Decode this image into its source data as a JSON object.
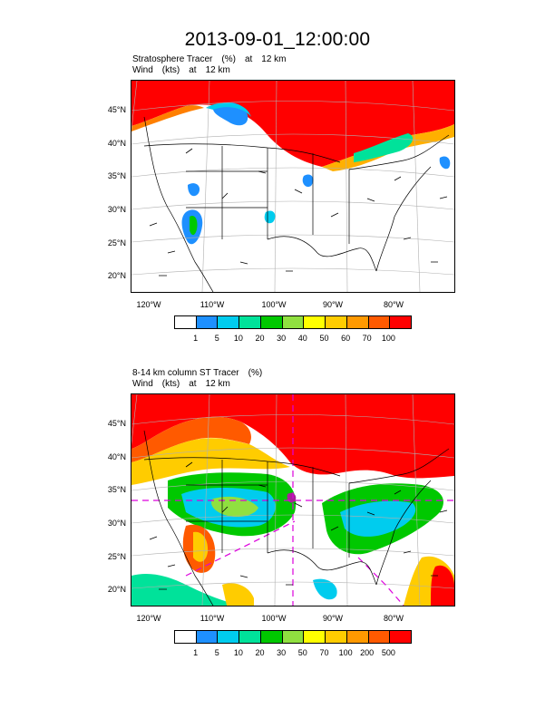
{
  "title": "2013-09-01_12:00:00",
  "panel1": {
    "line1": [
      "Stratosphere Tracer",
      "(%)",
      "at",
      "12 km"
    ],
    "line2": [
      "Wind",
      "(kts)",
      "at",
      "12 km"
    ],
    "lat_labels": [
      "45°N",
      "40°N",
      "35°N",
      "30°N",
      "25°N",
      "20°N"
    ],
    "lon_labels": [
      "120°W",
      "110°W",
      "100°W",
      "90°W",
      "80°W"
    ],
    "colorbar_labels": [
      "1",
      "5",
      "10",
      "20",
      "30",
      "40",
      "50",
      "60",
      "70",
      "100"
    ]
  },
  "panel2": {
    "line1": [
      "8-14 km column ST Tracer",
      "(%)"
    ],
    "line2": [
      "Wind",
      "(kts)",
      "at",
      "12 km"
    ],
    "lat_labels": [
      "45°N",
      "40°N",
      "35°N",
      "30°N",
      "25°N",
      "20°N"
    ],
    "lon_labels": [
      "120°W",
      "110°W",
      "100°W",
      "90°W",
      "80°W"
    ],
    "colorbar_labels": [
      "1",
      "5",
      "10",
      "20",
      "30",
      "50",
      "70",
      "100",
      "200",
      "500"
    ]
  },
  "colorbar_colors": [
    "#ffffff",
    "#1e90ff",
    "#00ccee",
    "#00e29a",
    "#00c800",
    "#90e040",
    "#ffff00",
    "#ffcc00",
    "#ff9900",
    "#ff5a00",
    "#ff0000"
  ]
}
